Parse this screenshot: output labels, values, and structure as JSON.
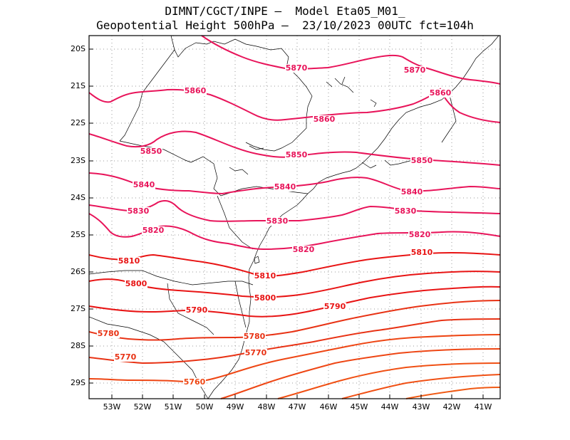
{
  "header": {
    "line1": "DIMNT/CGCT/INPE –  Model Eta05_M01_",
    "line2": "Geopotential Height 500hPa –  23/10/2023 00UTC fct=104h"
  },
  "map": {
    "lon_range": [
      -53.6,
      -40.55
    ],
    "lat_range": [
      -29.4,
      -19.7
    ],
    "lat_ticks": [
      "20S",
      "21S",
      "22S",
      "23S",
      "24S",
      "25S",
      "26S",
      "27S",
      "28S",
      "29S"
    ],
    "lon_ticks": [
      "53W",
      "52W",
      "51W",
      "50W",
      "49W",
      "48W",
      "47W",
      "46W",
      "45W",
      "44W",
      "43W",
      "42W",
      "41W"
    ],
    "colors": {
      "pink": "#e8145a",
      "red": "#e81414",
      "orange": "#f04a14",
      "grid": "#999999",
      "coast": "#000000"
    }
  },
  "contours": [
    {
      "value": 5870,
      "color": "#e8145a",
      "labels": [
        "5870",
        "5870"
      ]
    },
    {
      "value": 5860,
      "color": "#e8145a",
      "labels": [
        "5860",
        "5860",
        "5860"
      ]
    },
    {
      "value": 5850,
      "color": "#e8145a",
      "labels": [
        "5850",
        "5850",
        "5850"
      ]
    },
    {
      "value": 5840,
      "color": "#e8145a",
      "labels": [
        "5840",
        "5840",
        "5840"
      ]
    },
    {
      "value": 5830,
      "color": "#e8145a",
      "labels": [
        "5830",
        "5830",
        "5830"
      ]
    },
    {
      "value": 5820,
      "color": "#e8145a",
      "labels": [
        "5820",
        "5820",
        "5820"
      ]
    },
    {
      "value": 5810,
      "color": "#e81414",
      "labels": [
        "5810",
        "5810",
        "5810"
      ]
    },
    {
      "value": 5800,
      "color": "#e81414",
      "labels": [
        "5800",
        "5800"
      ]
    },
    {
      "value": 5790,
      "color": "#e81414",
      "labels": [
        "5790",
        "5790"
      ]
    },
    {
      "value": 5780,
      "color": "#e83214",
      "labels": [
        "5780",
        "5780"
      ]
    },
    {
      "value": 5770,
      "color": "#e83214",
      "labels": [
        "5770",
        "5770"
      ]
    },
    {
      "value": 5760,
      "color": "#ee4614",
      "labels": [
        "5760"
      ]
    },
    {
      "value": 5750,
      "color": "#ee4614",
      "labels": []
    },
    {
      "value": 5740,
      "color": "#f05014",
      "labels": []
    },
    {
      "value": 5730,
      "color": "#f05014",
      "labels": []
    },
    {
      "value": 5720,
      "color": "#f05a14",
      "labels": []
    }
  ]
}
